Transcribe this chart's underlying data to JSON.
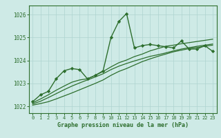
{
  "background_color": "#ceeae6",
  "grid_color": "#aed4d0",
  "line_color": "#2d6e2d",
  "title": "Graphe pression niveau de la mer (hPa)",
  "xlim": [
    -0.5,
    23.5
  ],
  "ylim": [
    1021.7,
    1026.4
  ],
  "yticks": [
    1022,
    1023,
    1024,
    1025,
    1026
  ],
  "xticks": [
    0,
    1,
    2,
    3,
    4,
    5,
    6,
    7,
    8,
    9,
    10,
    11,
    12,
    13,
    14,
    15,
    16,
    17,
    18,
    19,
    20,
    21,
    22,
    23
  ],
  "series": [
    {
      "x": [
        0,
        1,
        2,
        3,
        4,
        5,
        6,
        7,
        8,
        9,
        10,
        11,
        12,
        13,
        14,
        15,
        16,
        17,
        18,
        19,
        20,
        21,
        22,
        23
      ],
      "y": [
        1022.2,
        1022.5,
        1022.65,
        1023.2,
        1023.55,
        1023.65,
        1023.6,
        1023.2,
        1023.35,
        1023.55,
        1025.0,
        1025.7,
        1026.05,
        1024.55,
        1024.65,
        1024.7,
        1024.65,
        1024.6,
        1024.55,
        1024.85,
        1024.5,
        1024.5,
        1024.65,
        1024.4
      ],
      "marker": true,
      "linewidth": 1.0
    },
    {
      "x": [
        0,
        1,
        2,
        3,
        4,
        5,
        6,
        7,
        8,
        9,
        10,
        11,
        12,
        13,
        14,
        15,
        16,
        17,
        18,
        19,
        20,
        21,
        22,
        23
      ],
      "y": [
        1022.05,
        1022.12,
        1022.2,
        1022.32,
        1022.45,
        1022.58,
        1022.72,
        1022.86,
        1023.0,
        1023.15,
        1023.35,
        1023.52,
        1023.65,
        1023.8,
        1023.95,
        1024.07,
        1024.18,
        1024.28,
        1024.38,
        1024.45,
        1024.52,
        1024.57,
        1024.62,
        1024.67
      ],
      "marker": false,
      "linewidth": 0.9
    },
    {
      "x": [
        0,
        1,
        2,
        3,
        4,
        5,
        6,
        7,
        8,
        9,
        10,
        11,
        12,
        13,
        14,
        15,
        16,
        17,
        18,
        19,
        20,
        21,
        22,
        23
      ],
      "y": [
        1022.1,
        1022.22,
        1022.38,
        1022.55,
        1022.72,
        1022.88,
        1023.02,
        1023.15,
        1023.28,
        1023.42,
        1023.6,
        1023.75,
        1023.87,
        1023.98,
        1024.08,
        1024.18,
        1024.25,
        1024.33,
        1024.42,
        1024.5,
        1024.56,
        1024.62,
        1024.67,
        1024.72
      ],
      "marker": false,
      "linewidth": 0.9
    },
    {
      "x": [
        0,
        1,
        2,
        3,
        4,
        5,
        6,
        7,
        8,
        9,
        10,
        11,
        12,
        13,
        14,
        15,
        16,
        17,
        18,
        19,
        20,
        21,
        22,
        23
      ],
      "y": [
        1022.15,
        1022.32,
        1022.5,
        1022.7,
        1022.88,
        1023.05,
        1023.15,
        1023.2,
        1023.35,
        1023.52,
        1023.72,
        1023.9,
        1024.02,
        1024.17,
        1024.28,
        1024.42,
        1024.52,
        1024.62,
        1024.67,
        1024.73,
        1024.78,
        1024.83,
        1024.88,
        1024.93
      ],
      "marker": false,
      "linewidth": 0.9
    }
  ]
}
